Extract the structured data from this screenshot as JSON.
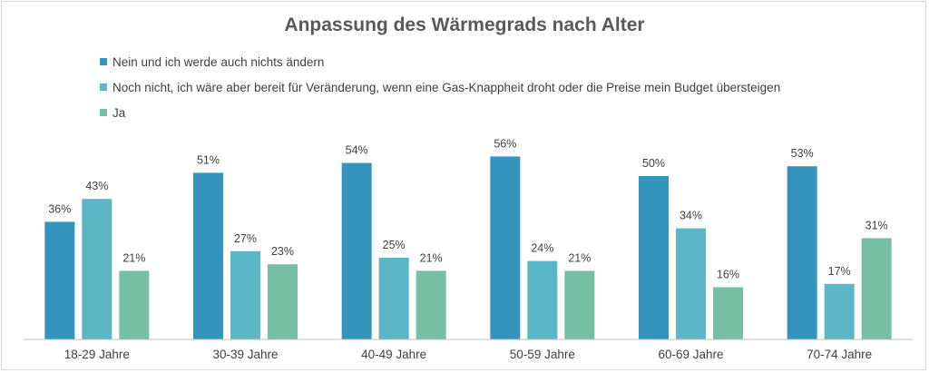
{
  "chart_data": {
    "type": "bar",
    "title": "Anpassung des Wärmegrads nach Alter",
    "categories": [
      "18-29 Jahre",
      "30-39 Jahre",
      "40-49 Jahre",
      "50-59 Jahre",
      "60-69 Jahre",
      "70-74 Jahre"
    ],
    "series": [
      {
        "name": "Nein und ich werde auch nichts ändern",
        "color": "#3594bd",
        "values": [
          36,
          51,
          54,
          56,
          50,
          53
        ],
        "labels": [
          "36%",
          "51%",
          "54%",
          "56%",
          "50%",
          "53%"
        ]
      },
      {
        "name": "Noch nicht, ich wäre aber bereit für Veränderung,  wenn eine Gas-Knappheit droht oder die Preise mein Budget übersteigen",
        "color": "#5bb6c6",
        "values": [
          43,
          27,
          25,
          24,
          34,
          17
        ],
        "labels": [
          "43%",
          "27%",
          "25%",
          "24%",
          "34%",
          "17%"
        ]
      },
      {
        "name": "Ja",
        "color": "#76bfa5",
        "values": [
          21,
          23,
          21,
          21,
          16,
          31
        ],
        "labels": [
          "21%",
          "23%",
          "21%",
          "21%",
          "16%",
          "31%"
        ]
      }
    ],
    "unit": "%",
    "ylim": [
      0,
      60
    ],
    "grid": false,
    "legend_position": "top-left",
    "axis_color": "#bfbfbf"
  }
}
